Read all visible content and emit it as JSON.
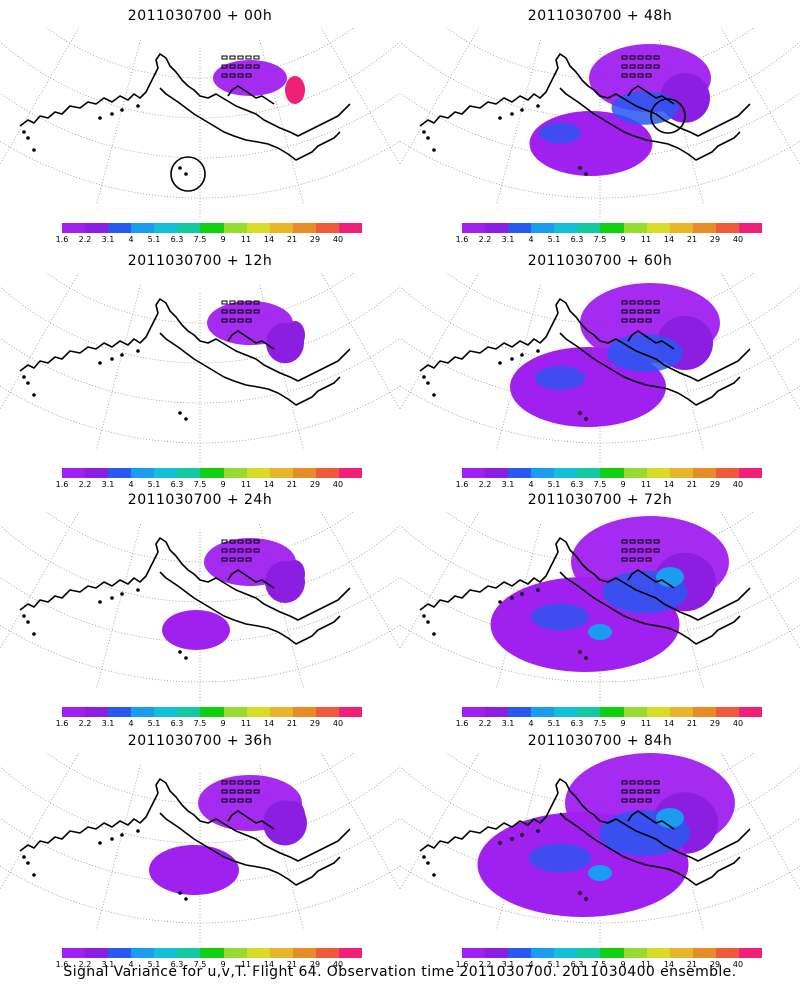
{
  "figure": {
    "caption": "Signal Variance for u,v,T. Flight 64. Observation time 2011030700. 2011030400 ensemble."
  },
  "panels": [
    {
      "title": "2011030700 + 00h",
      "lead_hours": 0,
      "coverage_level": 0.05,
      "circle_marker": "pacific"
    },
    {
      "title": "2011030700 + 48h",
      "lead_hours": 48,
      "coverage_level": 0.45,
      "circle_marker": "hudson"
    },
    {
      "title": "2011030700 + 12h",
      "lead_hours": 12,
      "coverage_level": 0.15,
      "circle_marker": ""
    },
    {
      "title": "2011030700 + 60h",
      "lead_hours": 60,
      "coverage_level": 0.6,
      "circle_marker": ""
    },
    {
      "title": "2011030700 + 24h",
      "lead_hours": 24,
      "coverage_level": 0.2,
      "circle_marker": ""
    },
    {
      "title": "2011030700 + 72h",
      "lead_hours": 72,
      "coverage_level": 0.75,
      "circle_marker": ""
    },
    {
      "title": "2011030700 + 36h",
      "lead_hours": 36,
      "coverage_level": 0.3,
      "circle_marker": ""
    },
    {
      "title": "2011030700 + 84h",
      "lead_hours": 84,
      "coverage_level": 0.85,
      "circle_marker": ""
    }
  ],
  "colorbar": {
    "colors": [
      "#a020f0",
      "#8b1ee0",
      "#2858f0",
      "#1a9cf0",
      "#14c0d8",
      "#14c8a0",
      "#10d010",
      "#96dc30",
      "#d8dc28",
      "#e8b428",
      "#e88c28",
      "#f05a3c",
      "#f02078"
    ],
    "labels_type_a": [
      "1.6",
      "2.2",
      "3.1",
      "4",
      "5.1",
      "6.3",
      "7.5",
      "9",
      "11",
      "14",
      "21",
      "29",
      "40"
    ],
    "labels_type_b": [
      "1.6",
      "2.2",
      "3.1",
      "4",
      "5.1",
      "6.3",
      "7.5",
      "9",
      "11",
      "14",
      "21",
      "29",
      "40"
    ]
  }
}
